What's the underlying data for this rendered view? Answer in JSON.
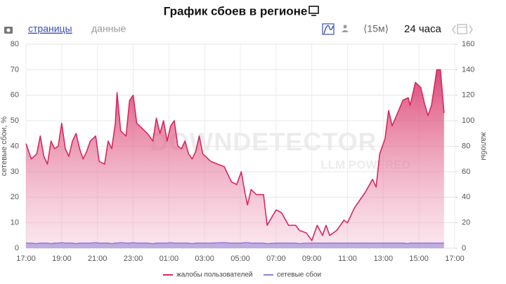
{
  "header": {
    "title": "График сбоев в регионе"
  },
  "toolbar": {
    "tabs": [
      "страницы",
      "данные"
    ],
    "interval": "⟨15м⟩",
    "range": "24 часа"
  },
  "chart_data": {
    "type": "area",
    "ylabel": "сетевые сбои, %",
    "y2label": "жалобы",
    "watermark": [
      "DOWNDETECTOR",
      "LLM POWERED"
    ],
    "grid": true,
    "legend": "bottom",
    "x": [
      0,
      0.3,
      0.6,
      0.8,
      1.0,
      1.2,
      1.4,
      1.6,
      1.8,
      2.0,
      2.2,
      2.4,
      2.6,
      2.8,
      3.0,
      3.2,
      3.4,
      3.6,
      3.9,
      4.1,
      4.4,
      4.6,
      4.8,
      5.0,
      5.1,
      5.3,
      5.6,
      5.8,
      6.0,
      6.2,
      6.5,
      6.8,
      7.1,
      7.3,
      7.5,
      7.7,
      7.9,
      8.1,
      8.3,
      8.5,
      8.7,
      8.9,
      9.1,
      9.3,
      9.5,
      9.7,
      9.9,
      10.35,
      11.1,
      11.5,
      11.8,
      12.05,
      12.25,
      12.4,
      12.6,
      12.9,
      13.3,
      13.5,
      14.0,
      14.3,
      14.7,
      15.1,
      15.3,
      15.7,
      16.0,
      16.3,
      16.6,
      16.8,
      17.0,
      17.4,
      17.8,
      18.0,
      18.4,
      19.0,
      19.4,
      19.6,
      19.8,
      20.1,
      20.3,
      20.5,
      20.8,
      21.1,
      21.4,
      21.5,
      21.8,
      22.1,
      22.3,
      22.5,
      22.7,
      23.0,
      23.2,
      23.4
    ],
    "xlim": [
      0,
      24
    ],
    "xticks": [
      {
        "value": 0,
        "label": "17:00"
      },
      {
        "value": 2,
        "label": "19:00"
      },
      {
        "value": 4,
        "label": "21:00"
      },
      {
        "value": 6,
        "label": "23:00"
      },
      {
        "value": 8,
        "label": "01:00"
      },
      {
        "value": 10,
        "label": "03:00"
      },
      {
        "value": 12,
        "label": "05:00"
      },
      {
        "value": 14,
        "label": "07:00"
      },
      {
        "value": 16,
        "label": "09:00"
      },
      {
        "value": 18,
        "label": "11:00"
      },
      {
        "value": 20,
        "label": "13:00"
      },
      {
        "value": 22,
        "label": "15:00"
      },
      {
        "value": 24,
        "label": "17:00"
      }
    ],
    "ylim": [
      0,
      80
    ],
    "yticks": [
      0,
      10,
      20,
      30,
      40,
      50,
      60,
      70,
      80
    ],
    "y2lim": [
      0,
      160
    ],
    "y2ticks": [
      0,
      20,
      40,
      60,
      80,
      100,
      120,
      140,
      160
    ],
    "series": [
      {
        "name": "жалобы пользователей",
        "color": "#d6285f",
        "axis": "y2",
        "values": [
          82,
          70,
          74,
          88,
          72,
          66,
          84,
          78,
          80,
          98,
          78,
          72,
          84,
          90,
          78,
          70,
          76,
          84,
          88,
          68,
          66,
          84,
          78,
          98,
          122,
          92,
          88,
          116,
          120,
          98,
          94,
          90,
          84,
          102,
          90,
          100,
          84,
          96,
          100,
          80,
          78,
          84,
          74,
          70,
          76,
          88,
          74,
          68,
          64,
          52,
          50,
          60,
          44,
          34,
          46,
          42,
          42,
          18,
          30,
          28,
          18,
          18,
          14,
          12,
          6,
          18,
          10,
          18,
          10,
          14,
          22,
          20,
          32,
          44,
          54,
          48,
          74,
          86,
          108,
          96,
          106,
          116,
          118,
          112,
          130,
          126,
          114,
          104,
          112,
          140,
          140,
          106
        ]
      },
      {
        "name": "сетевые сбои",
        "color": "#8f7fd6",
        "axis": "y",
        "values": [
          2,
          2,
          1.8,
          2,
          2,
          2,
          1.8,
          2,
          2,
          2.2,
          2,
          2,
          2,
          1.8,
          2,
          2,
          2,
          2,
          2.2,
          2,
          2,
          2,
          1.8,
          2,
          2,
          2.2,
          2,
          2,
          2.2,
          2,
          2,
          2,
          1.8,
          2,
          2,
          2,
          2,
          2.2,
          2,
          2,
          2,
          2,
          2,
          1.8,
          2,
          2,
          2,
          2,
          2.2,
          2,
          2,
          2,
          2.2,
          2.2,
          2,
          2,
          2,
          1.8,
          2,
          2,
          2,
          2,
          1.8,
          2,
          2,
          2,
          2,
          2,
          2,
          2,
          2,
          2,
          2,
          2,
          2,
          2,
          2,
          2,
          2,
          2,
          2,
          2,
          1.8,
          2,
          2,
          2,
          2,
          2,
          2,
          2,
          2,
          2
        ]
      }
    ]
  }
}
